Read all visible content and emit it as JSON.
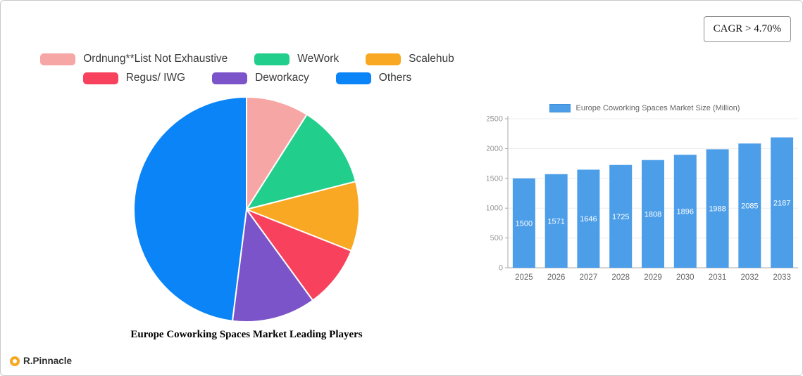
{
  "cagr": {
    "label": "CAGR > 4.70%"
  },
  "logo": {
    "text": "R.Pinnacle"
  },
  "chart_data": [
    {
      "type": "pie",
      "title": "Europe Coworking Spaces Market Leading Players",
      "legend_position": "top",
      "legend_rows": [
        3,
        3
      ],
      "slices": [
        {
          "label": "Ordnung**List Not Exhaustive",
          "value": 9,
          "color": "#F7A6A6"
        },
        {
          "label": "WeWork",
          "value": 12,
          "color": "#21CE8C"
        },
        {
          "label": "Scalehub",
          "value": 10,
          "color": "#F8A822"
        },
        {
          "label": "Regus/ IWG",
          "value": 9,
          "color": "#F8415C"
        },
        {
          "label": "Deworkacy",
          "value": 12,
          "color": "#7B54C9"
        },
        {
          "label": "Others",
          "value": 48,
          "color": "#0A84F6"
        }
      ]
    },
    {
      "type": "bar",
      "legend": "Europe Coworking Spaces Market Size (Million)",
      "legend_position": "top",
      "categories": [
        "2025",
        "2026",
        "2027",
        "2028",
        "2029",
        "2030",
        "2031",
        "2032",
        "2033"
      ],
      "values": [
        1500,
        1571,
        1646,
        1725,
        1808,
        1896,
        1988,
        2085,
        2187
      ],
      "bar_color": "#4D9EE8",
      "value_label_color": "#ffffff",
      "ylabel": "",
      "xlabel": "",
      "ylim": [
        0,
        2500
      ],
      "ytick_step": 500,
      "grid": true
    }
  ]
}
